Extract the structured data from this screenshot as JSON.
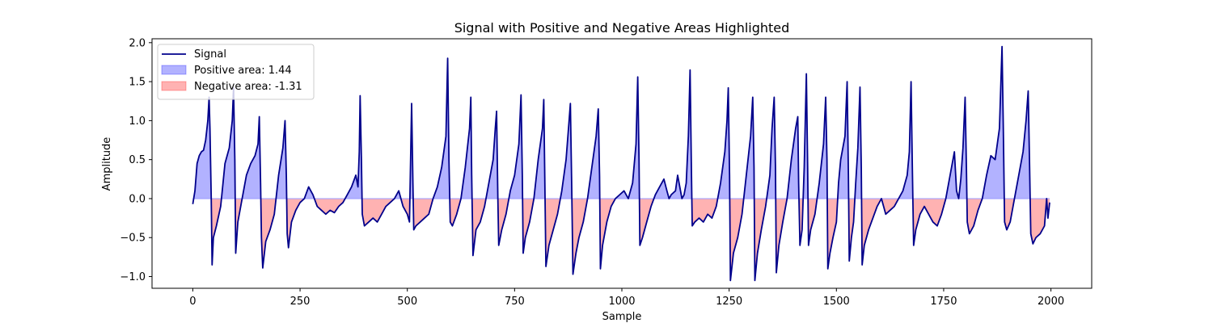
{
  "chart_data": {
    "type": "area",
    "title": "Signal with Positive and Negative Areas Highlighted",
    "xlabel": "Sample",
    "ylabel": "Amplitude",
    "xlim": [
      -95,
      2095
    ],
    "ylim": [
      -1.15,
      2.05
    ],
    "x_ticks": [
      0,
      250,
      500,
      750,
      1000,
      1250,
      1500,
      1750,
      2000
    ],
    "y_ticks": [
      -1.0,
      -0.5,
      0.0,
      0.5,
      1.0,
      1.5,
      2.0
    ],
    "x_tick_labels": [
      "0",
      "250",
      "500",
      "750",
      "1000",
      "1250",
      "1500",
      "1750",
      "2000"
    ],
    "y_tick_labels": [
      "−1.0",
      "−0.5",
      "0.0",
      "0.5",
      "1.0",
      "1.5",
      "2.0"
    ],
    "grid": false,
    "legend_position": "top-left",
    "legend": [
      {
        "label": "Signal",
        "kind": "line",
        "color": "#00008b"
      },
      {
        "label": "Positive area: 1.44",
        "kind": "patch",
        "color": "#0000ff"
      },
      {
        "label": "Negative area: -1.31",
        "kind": "patch",
        "color": "#ff0000"
      }
    ],
    "series": [
      {
        "name": "Signal",
        "color": "#00008b",
        "points": [
          [
            0,
            -0.07
          ],
          [
            5,
            0.1
          ],
          [
            10,
            0.45
          ],
          [
            15,
            0.55
          ],
          [
            20,
            0.6
          ],
          [
            25,
            0.62
          ],
          [
            30,
            0.75
          ],
          [
            35,
            1.0
          ],
          [
            38,
            1.3
          ],
          [
            40,
            0.9
          ],
          [
            43,
            0.0
          ],
          [
            45,
            -0.85
          ],
          [
            48,
            -0.5
          ],
          [
            55,
            -0.35
          ],
          [
            65,
            -0.1
          ],
          [
            75,
            0.45
          ],
          [
            85,
            0.65
          ],
          [
            92,
            1.0
          ],
          [
            95,
            1.42
          ],
          [
            98,
            0.5
          ],
          [
            100,
            -0.7
          ],
          [
            105,
            -0.3
          ],
          [
            115,
            0.0
          ],
          [
            125,
            0.3
          ],
          [
            135,
            0.45
          ],
          [
            145,
            0.55
          ],
          [
            152,
            0.7
          ],
          [
            155,
            1.05
          ],
          [
            158,
            0.2
          ],
          [
            160,
            -0.5
          ],
          [
            163,
            -0.89
          ],
          [
            170,
            -0.55
          ],
          [
            180,
            -0.4
          ],
          [
            190,
            -0.2
          ],
          [
            200,
            0.3
          ],
          [
            210,
            0.65
          ],
          [
            215,
            1.0
          ],
          [
            218,
            0.3
          ],
          [
            220,
            -0.45
          ],
          [
            223,
            -0.63
          ],
          [
            230,
            -0.3
          ],
          [
            240,
            -0.15
          ],
          [
            250,
            -0.05
          ],
          [
            260,
            0.0
          ],
          [
            270,
            0.15
          ],
          [
            280,
            0.05
          ],
          [
            290,
            -0.1
          ],
          [
            300,
            -0.15
          ],
          [
            310,
            -0.2
          ],
          [
            320,
            -0.15
          ],
          [
            330,
            -0.18
          ],
          [
            340,
            -0.1
          ],
          [
            350,
            -0.05
          ],
          [
            360,
            0.05
          ],
          [
            370,
            0.15
          ],
          [
            380,
            0.3
          ],
          [
            385,
            0.15
          ],
          [
            388,
            0.6
          ],
          [
            390,
            1.32
          ],
          [
            393,
            0.5
          ],
          [
            395,
            -0.2
          ],
          [
            400,
            -0.35
          ],
          [
            410,
            -0.3
          ],
          [
            420,
            -0.25
          ],
          [
            430,
            -0.3
          ],
          [
            440,
            -0.2
          ],
          [
            450,
            -0.1
          ],
          [
            460,
            -0.05
          ],
          [
            470,
            0.0
          ],
          [
            480,
            0.1
          ],
          [
            490,
            -0.1
          ],
          [
            500,
            -0.2
          ],
          [
            505,
            -0.3
          ],
          [
            510,
            1.22
          ],
          [
            513,
            0.2
          ],
          [
            515,
            -0.4
          ],
          [
            520,
            -0.35
          ],
          [
            530,
            -0.3
          ],
          [
            540,
            -0.25
          ],
          [
            550,
            -0.2
          ],
          [
            560,
            0.0
          ],
          [
            570,
            0.15
          ],
          [
            580,
            0.4
          ],
          [
            590,
            0.8
          ],
          [
            594,
            1.8
          ],
          [
            597,
            0.5
          ],
          [
            600,
            -0.3
          ],
          [
            605,
            -0.35
          ],
          [
            615,
            -0.2
          ],
          [
            625,
            0.0
          ],
          [
            635,
            0.4
          ],
          [
            645,
            0.9
          ],
          [
            648,
            1.3
          ],
          [
            650,
            0.3
          ],
          [
            653,
            -0.73
          ],
          [
            660,
            -0.4
          ],
          [
            670,
            -0.3
          ],
          [
            680,
            -0.1
          ],
          [
            690,
            0.2
          ],
          [
            700,
            0.5
          ],
          [
            705,
            0.9
          ],
          [
            708,
            1.12
          ],
          [
            711,
            0.0
          ],
          [
            713,
            -0.6
          ],
          [
            720,
            -0.4
          ],
          [
            730,
            -0.2
          ],
          [
            740,
            0.1
          ],
          [
            750,
            0.3
          ],
          [
            760,
            0.7
          ],
          [
            765,
            1.33
          ],
          [
            768,
            0.3
          ],
          [
            770,
            -0.7
          ],
          [
            775,
            -0.5
          ],
          [
            785,
            -0.3
          ],
          [
            795,
            0.0
          ],
          [
            805,
            0.5
          ],
          [
            815,
            0.9
          ],
          [
            818,
            1.27
          ],
          [
            821,
            0.0
          ],
          [
            823,
            -0.87
          ],
          [
            830,
            -0.6
          ],
          [
            840,
            -0.4
          ],
          [
            850,
            -0.2
          ],
          [
            860,
            0.1
          ],
          [
            870,
            0.5
          ],
          [
            877,
            1.0
          ],
          [
            880,
            1.22
          ],
          [
            883,
            0.2
          ],
          [
            886,
            -0.97
          ],
          [
            893,
            -0.7
          ],
          [
            900,
            -0.5
          ],
          [
            910,
            -0.3
          ],
          [
            920,
            0.0
          ],
          [
            930,
            0.4
          ],
          [
            940,
            0.8
          ],
          [
            945,
            1.15
          ],
          [
            948,
            0.3
          ],
          [
            950,
            -0.9
          ],
          [
            955,
            -0.6
          ],
          [
            965,
            -0.3
          ],
          [
            975,
            -0.1
          ],
          [
            985,
            0.0
          ],
          [
            995,
            0.05
          ],
          [
            1005,
            0.1
          ],
          [
            1015,
            0.0
          ],
          [
            1025,
            0.2
          ],
          [
            1033,
            0.7
          ],
          [
            1037,
            1.56
          ],
          [
            1040,
            0.5
          ],
          [
            1042,
            -0.6
          ],
          [
            1048,
            -0.5
          ],
          [
            1058,
            -0.3
          ],
          [
            1068,
            -0.1
          ],
          [
            1078,
            0.05
          ],
          [
            1088,
            0.15
          ],
          [
            1098,
            0.25
          ],
          [
            1105,
            0.1
          ],
          [
            1110,
            0.0
          ],
          [
            1115,
            0.05
          ],
          [
            1125,
            0.1
          ],
          [
            1130,
            0.3
          ],
          [
            1135,
            0.15
          ],
          [
            1140,
            0.0
          ],
          [
            1145,
            0.05
          ],
          [
            1150,
            0.2
          ],
          [
            1155,
            0.8
          ],
          [
            1159,
            1.65
          ],
          [
            1162,
            0.4
          ],
          [
            1164,
            -0.35
          ],
          [
            1170,
            -0.3
          ],
          [
            1180,
            -0.25
          ],
          [
            1190,
            -0.3
          ],
          [
            1200,
            -0.2
          ],
          [
            1210,
            -0.25
          ],
          [
            1220,
            -0.1
          ],
          [
            1230,
            0.2
          ],
          [
            1240,
            0.6
          ],
          [
            1245,
            1.0
          ],
          [
            1248,
            1.42
          ],
          [
            1251,
            0.3
          ],
          [
            1253,
            -1.05
          ],
          [
            1260,
            -0.7
          ],
          [
            1270,
            -0.5
          ],
          [
            1280,
            -0.2
          ],
          [
            1290,
            0.3
          ],
          [
            1300,
            0.8
          ],
          [
            1305,
            1.3
          ],
          [
            1308,
            0.4
          ],
          [
            1310,
            -1.05
          ],
          [
            1316,
            -0.7
          ],
          [
            1325,
            -0.4
          ],
          [
            1335,
            -0.1
          ],
          [
            1345,
            0.3
          ],
          [
            1350,
            0.9
          ],
          [
            1355,
            1.3
          ],
          [
            1358,
            0.4
          ],
          [
            1360,
            -0.95
          ],
          [
            1366,
            -0.6
          ],
          [
            1375,
            -0.3
          ],
          [
            1385,
            0.0
          ],
          [
            1395,
            0.5
          ],
          [
            1405,
            0.9
          ],
          [
            1410,
            1.05
          ],
          [
            1412,
            0.2
          ],
          [
            1415,
            -0.6
          ],
          [
            1420,
            -0.4
          ],
          [
            1425,
            0.4
          ],
          [
            1430,
            1.6
          ],
          [
            1433,
            0.4
          ],
          [
            1435,
            -0.6
          ],
          [
            1440,
            -0.4
          ],
          [
            1450,
            -0.2
          ],
          [
            1460,
            0.2
          ],
          [
            1470,
            0.7
          ],
          [
            1475,
            1.3
          ],
          [
            1478,
            0.5
          ],
          [
            1480,
            -0.9
          ],
          [
            1485,
            -0.7
          ],
          [
            1492,
            -0.5
          ],
          [
            1500,
            -0.3
          ],
          [
            1505,
            0.2
          ],
          [
            1510,
            0.5
          ],
          [
            1520,
            0.8
          ],
          [
            1525,
            1.5
          ],
          [
            1528,
            0.3
          ],
          [
            1530,
            -0.8
          ],
          [
            1535,
            -0.5
          ],
          [
            1540,
            -0.3
          ],
          [
            1545,
            0.2
          ],
          [
            1550,
            0.65
          ],
          [
            1555,
            1.43
          ],
          [
            1558,
            0.4
          ],
          [
            1560,
            -0.85
          ],
          [
            1565,
            -0.6
          ],
          [
            1575,
            -0.4
          ],
          [
            1585,
            -0.25
          ],
          [
            1595,
            -0.1
          ],
          [
            1605,
            0.0
          ],
          [
            1615,
            -0.2
          ],
          [
            1625,
            -0.15
          ],
          [
            1635,
            -0.1
          ],
          [
            1645,
            0.0
          ],
          [
            1655,
            0.1
          ],
          [
            1665,
            0.3
          ],
          [
            1670,
            0.6
          ],
          [
            1674,
            1.5
          ],
          [
            1677,
            0.4
          ],
          [
            1680,
            -0.6
          ],
          [
            1685,
            -0.4
          ],
          [
            1695,
            -0.2
          ],
          [
            1705,
            -0.1
          ],
          [
            1715,
            -0.2
          ],
          [
            1725,
            -0.3
          ],
          [
            1735,
            -0.35
          ],
          [
            1745,
            -0.2
          ],
          [
            1755,
            0.0
          ],
          [
            1765,
            0.3
          ],
          [
            1775,
            0.6
          ],
          [
            1778,
            0.3
          ],
          [
            1780,
            0.1
          ],
          [
            1785,
            0.0
          ],
          [
            1790,
            0.25
          ],
          [
            1795,
            0.65
          ],
          [
            1800,
            1.3
          ],
          [
            1803,
            0.4
          ],
          [
            1805,
            -0.3
          ],
          [
            1810,
            -0.45
          ],
          [
            1820,
            -0.35
          ],
          [
            1830,
            -0.15
          ],
          [
            1840,
            0.0
          ],
          [
            1850,
            0.3
          ],
          [
            1860,
            0.55
          ],
          [
            1870,
            0.5
          ],
          [
            1880,
            0.9
          ],
          [
            1886,
            1.95
          ],
          [
            1889,
            0.9
          ],
          [
            1892,
            -0.3
          ],
          [
            1897,
            -0.4
          ],
          [
            1905,
            -0.3
          ],
          [
            1915,
            0.0
          ],
          [
            1925,
            0.3
          ],
          [
            1935,
            0.6
          ],
          [
            1942,
            1.0
          ],
          [
            1947,
            1.38
          ],
          [
            1950,
            0.5
          ],
          [
            1953,
            -0.45
          ],
          [
            1958,
            -0.58
          ],
          [
            1965,
            -0.5
          ],
          [
            1975,
            -0.45
          ],
          [
            1985,
            -0.35
          ],
          [
            1990,
            0.0
          ],
          [
            1993,
            -0.25
          ],
          [
            1997,
            -0.05
          ]
        ]
      }
    ]
  }
}
